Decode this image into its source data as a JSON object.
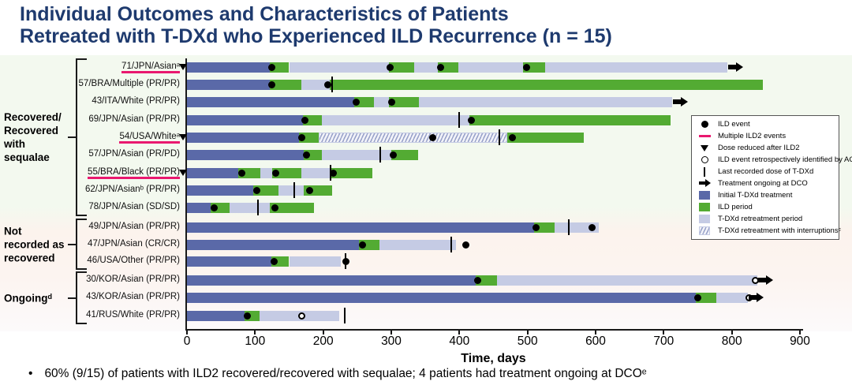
{
  "title": {
    "line1": "Individual Outcomes and Characteristics of Patients",
    "line2": "Retreated with T-DXd who Experienced ILD Recurrence (n = 15)"
  },
  "footer": {
    "bullet": "•",
    "text": "60% (9/15) of patients with ILD2 recovered/recovered with sequalae; 4 patients had treatment ongoing at DCOᵉ"
  },
  "legend": {
    "items": [
      {
        "icon": "ild-event",
        "label": "ILD event"
      },
      {
        "icon": "multiple-ild2",
        "label": "Multiple ILD2 events"
      },
      {
        "icon": "dose-reduced",
        "label": "Dose reduced after ILD2"
      },
      {
        "icon": "ild-retro",
        "label": "ILD event retrospectively identified by AC"
      },
      {
        "icon": "last-dose",
        "label": "Last recorded dose of T-DXd"
      },
      {
        "icon": "ongoing",
        "label": "Treatment ongoing at DCO"
      },
      {
        "icon": "swatch-initial",
        "label": "Initial T-DXd treatment"
      },
      {
        "icon": "swatch-ild",
        "label": "ILD period"
      },
      {
        "icon": "swatch-retreat",
        "label": "T-DXd retreatment period"
      },
      {
        "icon": "swatch-interrupt",
        "label": "T-DXd retreatment with interruptionsᶜ"
      }
    ]
  },
  "chart_data": {
    "type": "swimmer",
    "xlabel": "Time, days",
    "xlim": [
      0,
      900
    ],
    "xticks": [
      0,
      100,
      200,
      300,
      400,
      500,
      600,
      700,
      800,
      900
    ],
    "colors": {
      "initial": "#5a69a8",
      "ild": "#53ab33",
      "retreat": "#c5cbe4",
      "accent_pink": "#e9186f",
      "title_navy": "#1e3a6e"
    },
    "groups": [
      {
        "label": "Recovered/\nRecovered\nwith\nsequalae",
        "first": 0,
        "last": 8
      },
      {
        "label": "Not\nrecorded as\nrecovered",
        "first": 9,
        "last": 11
      },
      {
        "label": "Ongoingᵈ",
        "first": 12,
        "last": 14
      }
    ],
    "patients": [
      {
        "label": "71/JPN/Asianᵃ",
        "multiple_ild2": true,
        "dose_reduced": true,
        "ongoing": true,
        "segments": [
          {
            "type": "initial",
            "start": 0,
            "end": 122
          },
          {
            "type": "ild",
            "start": 122,
            "end": 150
          },
          {
            "type": "retreat",
            "start": 150,
            "end": 296
          },
          {
            "type": "ild",
            "start": 296,
            "end": 334
          },
          {
            "type": "retreat",
            "start": 334,
            "end": 368
          },
          {
            "type": "ild",
            "start": 368,
            "end": 398
          },
          {
            "type": "retreat",
            "start": 398,
            "end": 494
          },
          {
            "type": "ild",
            "start": 494,
            "end": 526
          },
          {
            "type": "retreat",
            "start": 526,
            "end": 793
          }
        ],
        "markers": [
          {
            "type": "ild",
            "day": 124
          },
          {
            "type": "ild",
            "day": 298
          },
          {
            "type": "ild",
            "day": 372
          },
          {
            "type": "ild",
            "day": 499
          }
        ]
      },
      {
        "label": "57/BRA/Multiple (PR/PR)",
        "multiple_ild2": false,
        "dose_reduced": false,
        "ongoing": false,
        "segments": [
          {
            "type": "initial",
            "start": 0,
            "end": 122
          },
          {
            "type": "ild",
            "start": 122,
            "end": 168
          },
          {
            "type": "retreat",
            "start": 168,
            "end": 210
          },
          {
            "type": "ild",
            "start": 210,
            "end": 845
          }
        ],
        "markers": [
          {
            "type": "ild",
            "day": 124
          },
          {
            "type": "ild",
            "day": 207
          },
          {
            "type": "last_dose",
            "day": 213
          }
        ]
      },
      {
        "label": "43/ITA/White (PR/PR)",
        "multiple_ild2": false,
        "dose_reduced": false,
        "ongoing": true,
        "segments": [
          {
            "type": "initial",
            "start": 0,
            "end": 245
          },
          {
            "type": "ild",
            "start": 245,
            "end": 274
          },
          {
            "type": "retreat",
            "start": 274,
            "end": 296
          },
          {
            "type": "ild",
            "start": 296,
            "end": 341
          },
          {
            "type": "retreat",
            "start": 341,
            "end": 712
          }
        ],
        "markers": [
          {
            "type": "ild",
            "day": 248
          },
          {
            "type": "ild",
            "day": 300
          }
        ]
      },
      {
        "label": "69/JPN/Asian (PR/PR)",
        "multiple_ild2": false,
        "dose_reduced": false,
        "ongoing": false,
        "segments": [
          {
            "type": "initial",
            "start": 0,
            "end": 170
          },
          {
            "type": "ild",
            "start": 170,
            "end": 198
          },
          {
            "type": "retreat",
            "start": 198,
            "end": 415
          },
          {
            "type": "ild",
            "start": 415,
            "end": 710
          }
        ],
        "markers": [
          {
            "type": "ild",
            "day": 173
          },
          {
            "type": "last_dose",
            "day": 400
          },
          {
            "type": "ild",
            "day": 418
          }
        ]
      },
      {
        "label": "54/USA/Whiteᵃ",
        "multiple_ild2": true,
        "dose_reduced": true,
        "ongoing": false,
        "segments": [
          {
            "type": "initial",
            "start": 0,
            "end": 165
          },
          {
            "type": "ild",
            "start": 165,
            "end": 193
          },
          {
            "type": "retreat_interrupted",
            "start": 193,
            "end": 470
          },
          {
            "type": "ild",
            "start": 470,
            "end": 583
          }
        ],
        "markers": [
          {
            "type": "ild",
            "day": 168
          },
          {
            "type": "ild",
            "day": 361
          },
          {
            "type": "last_dose",
            "day": 459
          },
          {
            "type": "ild",
            "day": 478
          }
        ]
      },
      {
        "label": "57/JPN/Asian (PR/PD)",
        "multiple_ild2": false,
        "dose_reduced": false,
        "ongoing": false,
        "segments": [
          {
            "type": "initial",
            "start": 0,
            "end": 172
          },
          {
            "type": "ild",
            "start": 172,
            "end": 198
          },
          {
            "type": "retreat",
            "start": 198,
            "end": 300
          },
          {
            "type": "ild",
            "start": 300,
            "end": 339
          }
        ],
        "markers": [
          {
            "type": "ild",
            "day": 176
          },
          {
            "type": "last_dose",
            "day": 284
          },
          {
            "type": "ild",
            "day": 303
          }
        ]
      },
      {
        "label": "55/BRA/Black (PR/PR)",
        "multiple_ild2": true,
        "dose_reduced": true,
        "ongoing": false,
        "segments": [
          {
            "type": "initial",
            "start": 0,
            "end": 75
          },
          {
            "type": "ild",
            "start": 75,
            "end": 108
          },
          {
            "type": "retreat",
            "start": 108,
            "end": 125
          },
          {
            "type": "ild",
            "start": 125,
            "end": 168
          },
          {
            "type": "retreat",
            "start": 168,
            "end": 212
          },
          {
            "type": "ild",
            "start": 212,
            "end": 272
          }
        ],
        "markers": [
          {
            "type": "ild",
            "day": 80
          },
          {
            "type": "ild",
            "day": 130
          },
          {
            "type": "last_dose",
            "day": 211
          },
          {
            "type": "ild",
            "day": 215
          }
        ]
      },
      {
        "label": "62/JPN/Asianᵇ (PR/PR)",
        "multiple_ild2": false,
        "dose_reduced": false,
        "ongoing": false,
        "segments": [
          {
            "type": "initial",
            "start": 0,
            "end": 97
          },
          {
            "type": "ild",
            "start": 97,
            "end": 134
          },
          {
            "type": "retreat",
            "start": 134,
            "end": 171
          },
          {
            "type": "ild",
            "start": 171,
            "end": 213
          }
        ],
        "markers": [
          {
            "type": "ild",
            "day": 102
          },
          {
            "type": "last_dose",
            "day": 158
          },
          {
            "type": "ild",
            "day": 180
          }
        ]
      },
      {
        "label": "78/JPN/Asian (SD/SD)",
        "multiple_ild2": false,
        "dose_reduced": false,
        "ongoing": false,
        "segments": [
          {
            "type": "initial",
            "start": 0,
            "end": 35
          },
          {
            "type": "ild",
            "start": 35,
            "end": 62
          },
          {
            "type": "retreat",
            "start": 62,
            "end": 122
          },
          {
            "type": "ild",
            "start": 122,
            "end": 186
          }
        ],
        "markers": [
          {
            "type": "ild",
            "day": 40
          },
          {
            "type": "last_dose",
            "day": 104
          },
          {
            "type": "ild",
            "day": 129
          }
        ]
      },
      {
        "label": "49/JPN/Asian (PR/PR)",
        "multiple_ild2": false,
        "dose_reduced": false,
        "ongoing": false,
        "segments": [
          {
            "type": "initial",
            "start": 0,
            "end": 510
          },
          {
            "type": "ild",
            "start": 510,
            "end": 540
          },
          {
            "type": "retreat",
            "start": 540,
            "end": 605
          }
        ],
        "markers": [
          {
            "type": "ild",
            "day": 513
          },
          {
            "type": "last_dose",
            "day": 561
          },
          {
            "type": "ild",
            "day": 595
          }
        ]
      },
      {
        "label": "47/JPN/Asian (CR/CR)",
        "multiple_ild2": false,
        "dose_reduced": false,
        "ongoing": false,
        "segments": [
          {
            "type": "initial",
            "start": 0,
            "end": 253
          },
          {
            "type": "ild",
            "start": 253,
            "end": 283
          },
          {
            "type": "retreat",
            "start": 283,
            "end": 395
          }
        ],
        "markers": [
          {
            "type": "ild",
            "day": 258
          },
          {
            "type": "last_dose",
            "day": 388
          },
          {
            "type": "ild",
            "day": 410
          }
        ]
      },
      {
        "label": "46/USA/Other (PR/PR)",
        "multiple_ild2": false,
        "dose_reduced": false,
        "ongoing": false,
        "segments": [
          {
            "type": "initial",
            "start": 0,
            "end": 124
          },
          {
            "type": "ild",
            "start": 124,
            "end": 150
          },
          {
            "type": "retreat",
            "start": 150,
            "end": 226
          }
        ],
        "markers": [
          {
            "type": "ild",
            "day": 128
          },
          {
            "type": "last_dose",
            "day": 233
          },
          {
            "type": "ild",
            "day": 233
          }
        ]
      },
      {
        "label": "30/KOR/Asian (PR/PR)",
        "multiple_ild2": false,
        "dose_reduced": false,
        "ongoing": true,
        "segments": [
          {
            "type": "initial",
            "start": 0,
            "end": 424
          },
          {
            "type": "ild",
            "start": 424,
            "end": 455
          },
          {
            "type": "retreat",
            "start": 455,
            "end": 837
          }
        ],
        "markers": [
          {
            "type": "ild",
            "day": 427
          },
          {
            "type": "ild_retro",
            "day": 835
          }
        ]
      },
      {
        "label": "43/KOR/Asian (PR/PR)",
        "multiple_ild2": false,
        "dose_reduced": false,
        "ongoing": true,
        "segments": [
          {
            "type": "initial",
            "start": 0,
            "end": 747
          },
          {
            "type": "ild",
            "start": 747,
            "end": 777
          },
          {
            "type": "retreat",
            "start": 777,
            "end": 823
          }
        ],
        "markers": [
          {
            "type": "ild",
            "day": 750
          },
          {
            "type": "ild_retro",
            "day": 825
          }
        ]
      },
      {
        "label": "41/RUS/White (PR/PR)",
        "multiple_ild2": false,
        "dose_reduced": false,
        "ongoing": false,
        "segments": [
          {
            "type": "initial",
            "start": 0,
            "end": 85
          },
          {
            "type": "ild",
            "start": 85,
            "end": 106
          },
          {
            "type": "retreat",
            "start": 106,
            "end": 224
          }
        ],
        "markers": [
          {
            "type": "ild",
            "day": 89
          },
          {
            "type": "ild_retro",
            "day": 169
          },
          {
            "type": "last_dose",
            "day": 232
          }
        ]
      }
    ]
  }
}
